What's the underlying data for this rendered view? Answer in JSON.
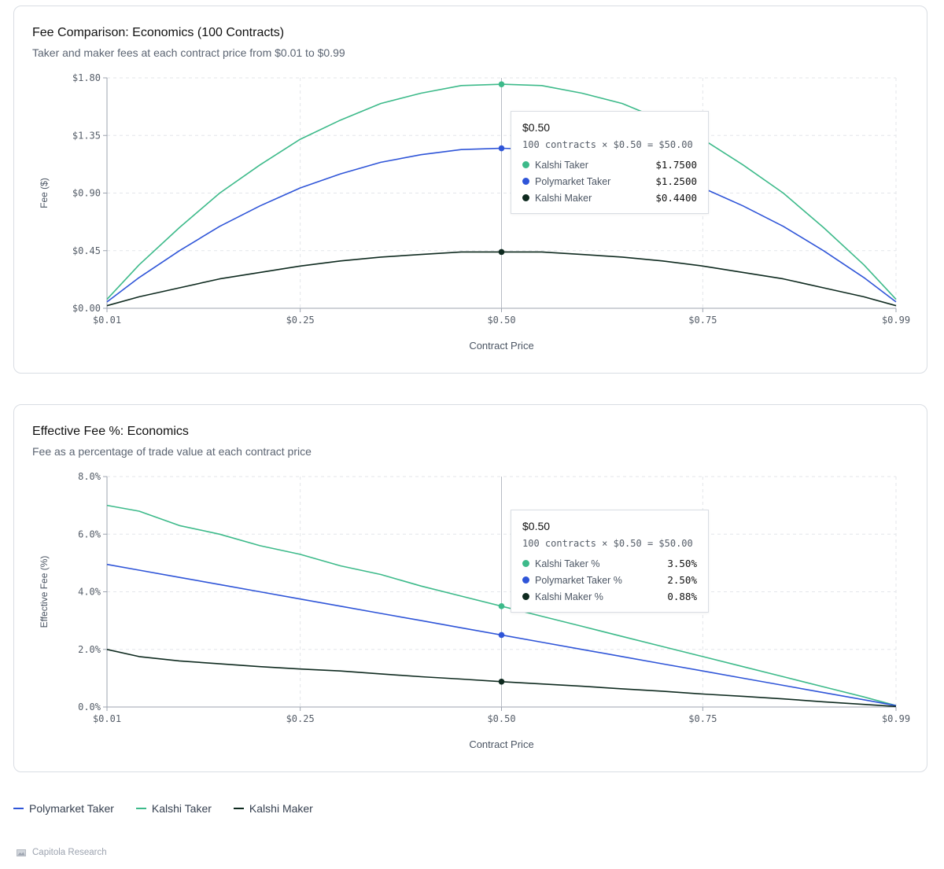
{
  "colors": {
    "kalshi_taker": "#3dba8a",
    "polymarket_taker": "#2f55d8",
    "kalshi_maker": "#0e2a1f",
    "grid": "#e3e6ea",
    "axis": "#9ca3af"
  },
  "chart_data": [
    {
      "type": "line",
      "title": "Fee Comparison: Economics (100 Contracts)",
      "subtitle": "Taker and maker fees at each contract price from $0.01 to $0.99",
      "xlabel": "Contract Price",
      "ylabel": "Fee ($)",
      "xlim": [
        0.01,
        0.99
      ],
      "ylim": [
        0,
        1.8
      ],
      "x_ticks": [
        0.01,
        0.25,
        0.5,
        0.75,
        0.99
      ],
      "x_tick_labels": [
        "$0.01",
        "$0.25",
        "$0.50",
        "$0.75",
        "$0.99"
      ],
      "y_ticks": [
        0,
        0.45,
        0.9,
        1.35,
        1.8
      ],
      "y_tick_labels": [
        "$0.00",
        "$0.45",
        "$0.90",
        "$1.35",
        "$1.80"
      ],
      "grid": true,
      "x": [
        0.01,
        0.05,
        0.1,
        0.15,
        0.2,
        0.25,
        0.3,
        0.35,
        0.4,
        0.45,
        0.5,
        0.55,
        0.6,
        0.65,
        0.7,
        0.75,
        0.8,
        0.85,
        0.9,
        0.95,
        0.99
      ],
      "series": [
        {
          "name": "Kalshi Taker",
          "color_key": "kalshi_taker",
          "values": [
            0.07,
            0.34,
            0.63,
            0.9,
            1.12,
            1.32,
            1.47,
            1.6,
            1.68,
            1.74,
            1.75,
            1.74,
            1.68,
            1.6,
            1.47,
            1.32,
            1.12,
            0.9,
            0.63,
            0.34,
            0.07
          ]
        },
        {
          "name": "Polymarket Taker",
          "color_key": "polymarket_taker",
          "values": [
            0.05,
            0.24,
            0.45,
            0.64,
            0.8,
            0.94,
            1.05,
            1.14,
            1.2,
            1.24,
            1.25,
            1.24,
            1.2,
            1.14,
            1.05,
            0.94,
            0.8,
            0.64,
            0.45,
            0.24,
            0.05
          ]
        },
        {
          "name": "Kalshi Maker",
          "color_key": "kalshi_maker",
          "values": [
            0.02,
            0.09,
            0.16,
            0.23,
            0.28,
            0.33,
            0.37,
            0.4,
            0.42,
            0.44,
            0.44,
            0.44,
            0.42,
            0.4,
            0.37,
            0.33,
            0.28,
            0.23,
            0.16,
            0.09,
            0.02
          ]
        }
      ],
      "hover_x": 0.5,
      "tooltip": {
        "title": "$0.50",
        "subtitle": "100 contracts × $0.50 = $50.00",
        "rows": [
          {
            "label": "Kalshi Taker",
            "value": "$1.7500",
            "color_key": "kalshi_taker"
          },
          {
            "label": "Polymarket Taker",
            "value": "$1.2500",
            "color_key": "polymarket_taker"
          },
          {
            "label": "Kalshi Maker",
            "value": "$0.4400",
            "color_key": "kalshi_maker"
          }
        ]
      }
    },
    {
      "type": "line",
      "title": "Effective Fee %: Economics",
      "subtitle": "Fee as a percentage of trade value at each contract price",
      "xlabel": "Contract Price",
      "ylabel": "Effective Fee (%)",
      "xlim": [
        0.01,
        0.99
      ],
      "ylim": [
        0,
        8
      ],
      "x_ticks": [
        0.01,
        0.25,
        0.5,
        0.75,
        0.99
      ],
      "x_tick_labels": [
        "$0.01",
        "$0.25",
        "$0.50",
        "$0.75",
        "$0.99"
      ],
      "y_ticks": [
        0,
        2,
        4,
        6,
        8
      ],
      "y_tick_labels": [
        "0.0%",
        "2.0%",
        "4.0%",
        "6.0%",
        "8.0%"
      ],
      "grid": true,
      "x": [
        0.01,
        0.05,
        0.1,
        0.15,
        0.2,
        0.25,
        0.3,
        0.35,
        0.4,
        0.45,
        0.5,
        0.55,
        0.6,
        0.65,
        0.7,
        0.75,
        0.8,
        0.85,
        0.9,
        0.95,
        0.99
      ],
      "series": [
        {
          "name": "Kalshi Taker %",
          "color_key": "kalshi_taker",
          "values": [
            7.0,
            6.8,
            6.3,
            6.0,
            5.6,
            5.3,
            4.9,
            4.6,
            4.2,
            3.85,
            3.5,
            3.15,
            2.8,
            2.45,
            2.1,
            1.75,
            1.4,
            1.05,
            0.7,
            0.35,
            0.05
          ]
        },
        {
          "name": "Polymarket Taker %",
          "color_key": "polymarket_taker",
          "values": [
            4.95,
            4.75,
            4.5,
            4.25,
            4.0,
            3.75,
            3.5,
            3.25,
            3.0,
            2.75,
            2.5,
            2.25,
            2.0,
            1.75,
            1.5,
            1.25,
            1.0,
            0.75,
            0.5,
            0.25,
            0.05
          ]
        },
        {
          "name": "Kalshi Maker %",
          "color_key": "kalshi_maker",
          "values": [
            2.0,
            1.75,
            1.6,
            1.5,
            1.4,
            1.32,
            1.25,
            1.15,
            1.05,
            0.97,
            0.88,
            0.8,
            0.72,
            0.63,
            0.55,
            0.45,
            0.37,
            0.28,
            0.18,
            0.09,
            0.02
          ]
        }
      ],
      "hover_x": 0.5,
      "tooltip": {
        "title": "$0.50",
        "subtitle": "100 contracts × $0.50 = $50.00",
        "rows": [
          {
            "label": "Kalshi Taker %",
            "value": "3.50%",
            "color_key": "kalshi_taker"
          },
          {
            "label": "Polymarket Taker %",
            "value": "2.50%",
            "color_key": "polymarket_taker"
          },
          {
            "label": "Kalshi Maker %",
            "value": "0.88%",
            "color_key": "kalshi_maker"
          }
        ]
      }
    }
  ],
  "legend": [
    {
      "label": "Polymarket Taker",
      "color_key": "polymarket_taker"
    },
    {
      "label": "Kalshi Taker",
      "color_key": "kalshi_taker"
    },
    {
      "label": "Kalshi Maker",
      "color_key": "kalshi_maker"
    }
  ],
  "footer": {
    "label": "Capitola Research"
  }
}
